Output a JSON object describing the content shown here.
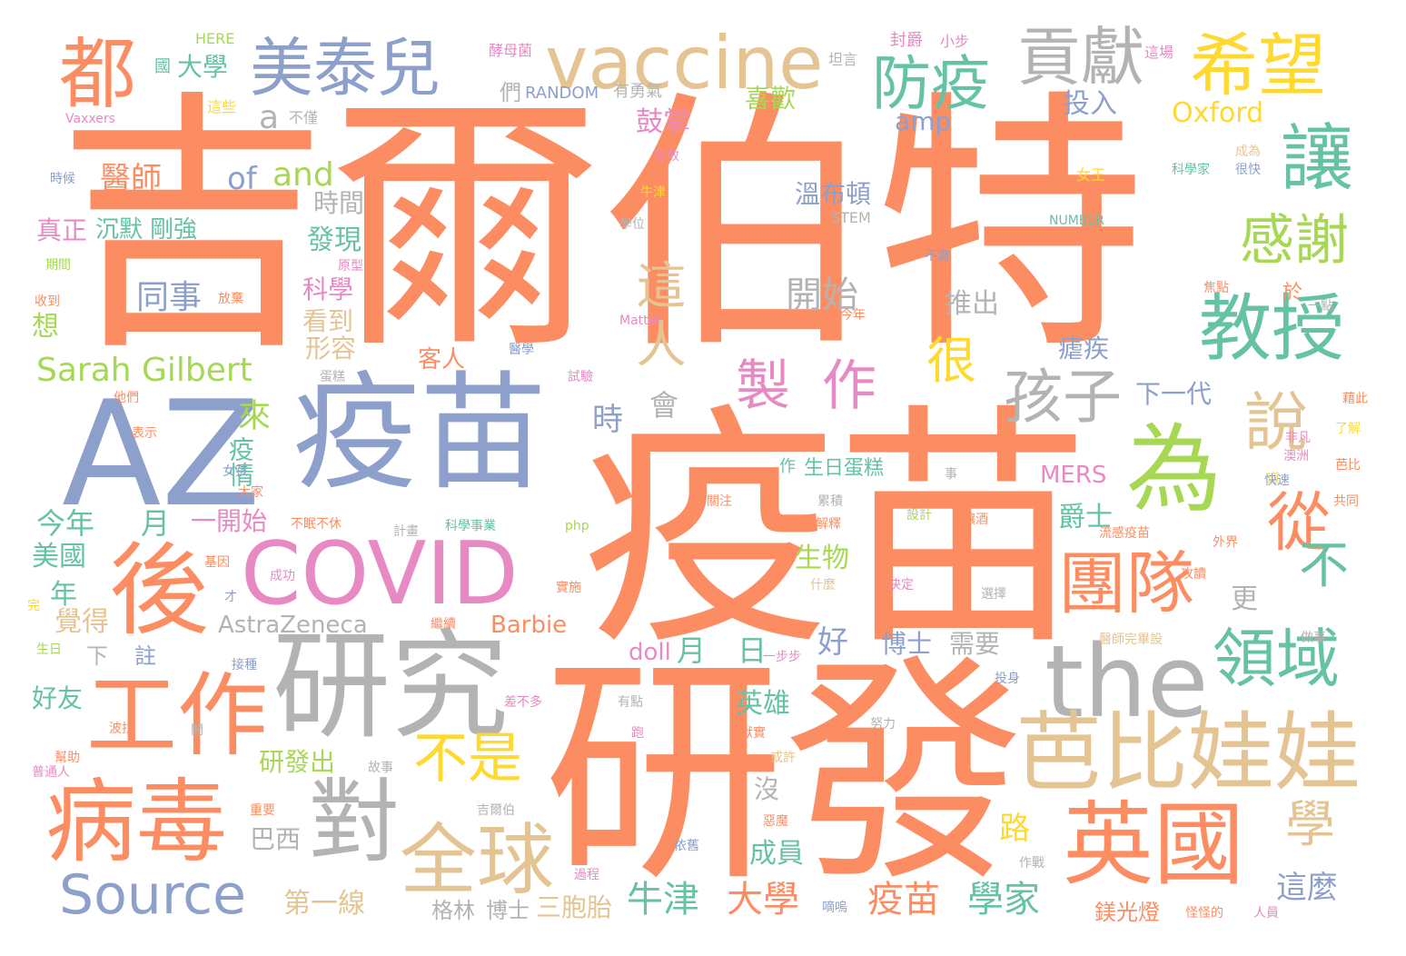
{
  "palette": {
    "orange": "#fc8d62",
    "blue": "#8da0cb",
    "pink": "#e78ac3",
    "green": "#a6d854",
    "yellow": "#ffd92f",
    "tan": "#e5c494",
    "gray": "#b3b3b3",
    "teal": "#66c2a5"
  },
  "words": [
    {
      "text": "吉爾伯特",
      "color": "orange"
    },
    {
      "text": "疫苗",
      "color": "orange"
    },
    {
      "text": "研發",
      "color": "orange"
    },
    {
      "text": "AZ",
      "color": "blue"
    },
    {
      "text": "疫苗",
      "color": "blue"
    },
    {
      "text": "研究",
      "color": "gray"
    },
    {
      "text": "後",
      "color": "orange"
    },
    {
      "text": "病毒",
      "color": "orange"
    },
    {
      "text": "工作",
      "color": "orange"
    },
    {
      "text": "COVID",
      "color": "pink"
    },
    {
      "text": "對",
      "color": "gray"
    },
    {
      "text": "the",
      "color": "gray"
    },
    {
      "text": "為",
      "color": "green"
    },
    {
      "text": "芭比娃娃",
      "color": "tan"
    },
    {
      "text": "英國",
      "color": "orange"
    },
    {
      "text": "vaccine",
      "color": "tan"
    },
    {
      "text": "美泰兒",
      "color": "blue"
    },
    {
      "text": "希望",
      "color": "yellow"
    },
    {
      "text": "都",
      "color": "orange"
    },
    {
      "text": "貢獻",
      "color": "gray"
    },
    {
      "text": "讓",
      "color": "teal"
    },
    {
      "text": "教授",
      "color": "teal"
    },
    {
      "text": "團隊",
      "color": "orange"
    },
    {
      "text": "領域",
      "color": "teal"
    },
    {
      "text": "全球",
      "color": "tan"
    },
    {
      "text": "Source",
      "color": "blue"
    },
    {
      "text": "防疫",
      "color": "teal"
    },
    {
      "text": "孩子",
      "color": "gray"
    },
    {
      "text": "說",
      "color": "tan"
    },
    {
      "text": "從",
      "color": "orange"
    },
    {
      "text": "感謝",
      "color": "green"
    },
    {
      "text": "製",
      "color": "pink"
    },
    {
      "text": "作",
      "color": "pink"
    },
    {
      "text": "很",
      "color": "yellow"
    },
    {
      "text": "不是",
      "color": "yellow"
    },
    {
      "text": "學",
      "color": "tan"
    },
    {
      "text": "不",
      "color": "teal"
    },
    {
      "text": "這",
      "color": "tan"
    },
    {
      "text": "人",
      "color": "tan"
    },
    {
      "text": "Sarah Gilbert",
      "color": "green"
    },
    {
      "text": "牛津",
      "color": "teal"
    },
    {
      "text": "大學",
      "color": "orange"
    },
    {
      "text": "疫苗",
      "color": "orange"
    },
    {
      "text": "學家",
      "color": "teal"
    },
    {
      "text": "開始",
      "color": "gray"
    },
    {
      "text": "同事",
      "color": "blue"
    },
    {
      "text": "Oxford",
      "color": "yellow"
    },
    {
      "text": "amp",
      "color": "blue"
    },
    {
      "text": "a",
      "color": "gray"
    },
    {
      "text": "of",
      "color": "blue"
    },
    {
      "text": "and",
      "color": "green"
    },
    {
      "text": "醫師",
      "color": "orange"
    },
    {
      "text": "今年",
      "color": "teal"
    },
    {
      "text": "月",
      "color": "teal"
    },
    {
      "text": "這麼",
      "color": "blue"
    },
    {
      "text": "第一線",
      "color": "tan"
    },
    {
      "text": "三胞胎",
      "color": "tan"
    },
    {
      "text": "格林",
      "color": "gray"
    },
    {
      "text": "博士",
      "color": "gray"
    },
    {
      "text": "AstraZeneca",
      "color": "gray"
    },
    {
      "text": "Barbie",
      "color": "orange"
    },
    {
      "text": "MERS",
      "color": "pink"
    },
    {
      "text": "溫布頓",
      "color": "blue"
    },
    {
      "text": "STEM",
      "color": "gray"
    },
    {
      "text": "推出",
      "color": "gray"
    },
    {
      "text": "瘧疾",
      "color": "blue"
    },
    {
      "text": "下一代",
      "color": "blue"
    },
    {
      "text": "時間",
      "color": "gray"
    },
    {
      "text": "發現",
      "color": "teal"
    },
    {
      "text": "科學",
      "color": "pink"
    },
    {
      "text": "看到",
      "color": "tan"
    },
    {
      "text": "形容",
      "color": "tan"
    },
    {
      "text": "真正",
      "color": "pink"
    },
    {
      "text": "沉默",
      "color": "teal"
    },
    {
      "text": "剛強",
      "color": "teal"
    },
    {
      "text": "來",
      "color": "green"
    },
    {
      "text": "疫情",
      "color": "teal"
    },
    {
      "text": "時",
      "color": "blue"
    },
    {
      "text": "會",
      "color": "gray"
    },
    {
      "text": "一開始",
      "color": "pink"
    },
    {
      "text": "美國",
      "color": "teal"
    },
    {
      "text": "年",
      "color": "teal"
    },
    {
      "text": "覺得",
      "color": "tan"
    },
    {
      "text": "好友",
      "color": "teal"
    },
    {
      "text": "研發出",
      "color": "green"
    },
    {
      "text": "巴西",
      "color": "gray"
    },
    {
      "text": "月",
      "color": "teal"
    },
    {
      "text": "日",
      "color": "teal"
    },
    {
      "text": "好",
      "color": "blue"
    },
    {
      "text": "doll",
      "color": "pink"
    },
    {
      "text": "博士",
      "color": "blue"
    },
    {
      "text": "需要",
      "color": "gray"
    },
    {
      "text": "英雄",
      "color": "teal"
    },
    {
      "text": "生物",
      "color": "green"
    },
    {
      "text": "成員",
      "color": "teal"
    },
    {
      "text": "沒",
      "color": "gray"
    },
    {
      "text": "路",
      "color": "yellow"
    },
    {
      "text": "爵士",
      "color": "teal"
    },
    {
      "text": "更",
      "color": "gray"
    },
    {
      "text": "鼓掌",
      "color": "pink"
    },
    {
      "text": "喜歡",
      "color": "green"
    },
    {
      "text": "投入",
      "color": "blue"
    },
    {
      "text": "大學",
      "color": "teal"
    },
    {
      "text": "們",
      "color": "gray"
    },
    {
      "text": "RANDOM",
      "color": "blue"
    },
    {
      "text": "有勇氣",
      "color": "gray"
    },
    {
      "text": "酵母菌",
      "color": "pink"
    },
    {
      "text": "坦言",
      "color": "gray"
    },
    {
      "text": "封爵",
      "color": "pink"
    },
    {
      "text": "小步",
      "color": "pink"
    },
    {
      "text": "這場",
      "color": "pink"
    },
    {
      "text": "HERE",
      "color": "green"
    },
    {
      "text": "國",
      "color": "teal"
    },
    {
      "text": "這些",
      "color": "yellow"
    },
    {
      "text": "不僅",
      "color": "gray"
    },
    {
      "text": "Vaxxers",
      "color": "pink"
    },
    {
      "text": "時候",
      "color": "blue"
    },
    {
      "text": "有效",
      "color": "pink"
    },
    {
      "text": "牛津",
      "color": "yellow"
    },
    {
      "text": "學位",
      "color": "gray"
    },
    {
      "text": "女王",
      "color": "yellow"
    },
    {
      "text": "科學家",
      "color": "teal"
    },
    {
      "text": "成為",
      "color": "tan"
    },
    {
      "text": "很快",
      "color": "blue"
    },
    {
      "text": "NUMBER",
      "color": "teal"
    },
    {
      "text": "不實",
      "color": "blue"
    },
    {
      "text": "焦點",
      "color": "orange"
    },
    {
      "text": "一點",
      "color": "gray"
    },
    {
      "text": "於",
      "color": "orange"
    },
    {
      "text": "今年",
      "color": "orange"
    },
    {
      "text": "Mattel",
      "color": "pink"
    },
    {
      "text": "醫學",
      "color": "blue"
    },
    {
      "text": "試驗",
      "color": "pink"
    },
    {
      "text": "蛋糕",
      "color": "gray"
    },
    {
      "text": "客人",
      "color": "orange"
    },
    {
      "text": "期間",
      "color": "green"
    },
    {
      "text": "收到",
      "color": "orange"
    },
    {
      "text": "放棄",
      "color": "orange"
    },
    {
      "text": "原型",
      "color": "pink"
    },
    {
      "text": "想",
      "color": "green"
    },
    {
      "text": "他們",
      "color": "orange"
    },
    {
      "text": "表示",
      "color": "orange"
    },
    {
      "text": "女孩",
      "color": "blue"
    },
    {
      "text": "大家",
      "color": "orange"
    },
    {
      "text": "不眠不休",
      "color": "orange"
    },
    {
      "text": "計畫",
      "color": "gray"
    },
    {
      "text": "科學事業",
      "color": "teal"
    },
    {
      "text": "php",
      "color": "green"
    },
    {
      "text": "作",
      "color": "teal"
    },
    {
      "text": "生日蛋糕",
      "color": "teal"
    },
    {
      "text": "事",
      "color": "gray"
    },
    {
      "text": "累積",
      "color": "gray"
    },
    {
      "text": "設計",
      "color": "green"
    },
    {
      "text": "釀酒",
      "color": "orange"
    },
    {
      "text": "流感疫苗",
      "color": "orange"
    },
    {
      "text": "解釋",
      "color": "orange"
    },
    {
      "text": "關注",
      "color": "orange"
    },
    {
      "text": "非凡",
      "color": "pink"
    },
    {
      "text": "澳洲",
      "color": "pink"
    },
    {
      "text": "道",
      "color": "yellow"
    },
    {
      "text": "藉此",
      "color": "orange"
    },
    {
      "text": "了解",
      "color": "yellow"
    },
    {
      "text": "芭比",
      "color": "orange"
    },
    {
      "text": "快速",
      "color": "blue"
    },
    {
      "text": "共同",
      "color": "orange"
    },
    {
      "text": "外界",
      "color": "orange"
    },
    {
      "text": "攻讀",
      "color": "orange"
    },
    {
      "text": "做事",
      "color": "gray"
    },
    {
      "text": "基因",
      "color": "orange"
    },
    {
      "text": "成功",
      "color": "pink"
    },
    {
      "text": "才",
      "color": "blue"
    },
    {
      "text": "什麼",
      "color": "tan"
    },
    {
      "text": "決定",
      "color": "pink"
    },
    {
      "text": "選擇",
      "color": "gray"
    },
    {
      "text": "實施",
      "color": "orange"
    },
    {
      "text": "繼續",
      "color": "orange"
    },
    {
      "text": "完",
      "color": "yellow"
    },
    {
      "text": "生日",
      "color": "green"
    },
    {
      "text": "下",
      "color": "gray"
    },
    {
      "text": "註",
      "color": "blue"
    },
    {
      "text": "接種",
      "color": "blue"
    },
    {
      "text": "一步步",
      "color": "pink"
    },
    {
      "text": "醫師完畢設",
      "color": "tan"
    },
    {
      "text": "投身",
      "color": "blue"
    },
    {
      "text": "有點",
      "color": "gray"
    },
    {
      "text": "差不多",
      "color": "pink"
    },
    {
      "text": "波拉",
      "color": "orange"
    },
    {
      "text": "開",
      "color": "gray"
    },
    {
      "text": "跑",
      "color": "pink"
    },
    {
      "text": "努力",
      "color": "gray"
    },
    {
      "text": "獻實",
      "color": "orange"
    },
    {
      "text": "或許",
      "color": "tan"
    },
    {
      "text": "幫助",
      "color": "orange"
    },
    {
      "text": "普通人",
      "color": "pink"
    },
    {
      "text": "故事",
      "color": "gray"
    },
    {
      "text": "吉爾伯",
      "color": "gray"
    },
    {
      "text": "重要",
      "color": "orange"
    },
    {
      "text": "惡魔",
      "color": "orange"
    },
    {
      "text": "依舊",
      "color": "blue"
    },
    {
      "text": "作戰",
      "color": "gray"
    },
    {
      "text": "過程",
      "color": "pink"
    },
    {
      "text": "嘀嗚",
      "color": "blue"
    },
    {
      "text": "鎂光燈",
      "color": "orange"
    },
    {
      "text": "怪怪的",
      "color": "orange"
    },
    {
      "text": "人員",
      "color": "pink"
    }
  ]
}
